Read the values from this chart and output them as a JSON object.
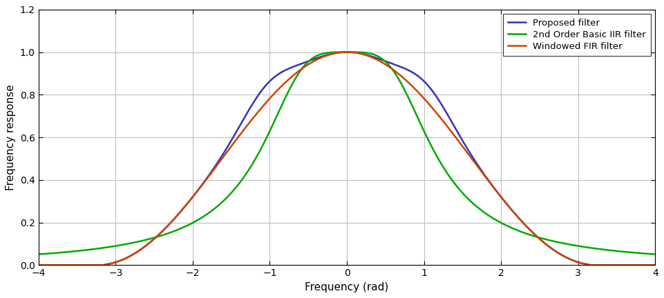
{
  "title": "",
  "xlabel": "Frequency (rad)",
  "ylabel": "Frequency response",
  "xlim": [
    -4,
    4
  ],
  "ylim": [
    0,
    1.2
  ],
  "xticks": [
    -4,
    -3,
    -2,
    -1,
    0,
    1,
    2,
    3,
    4
  ],
  "yticks": [
    0,
    0.2,
    0.4,
    0.6,
    0.8,
    1.0,
    1.2
  ],
  "legend": [
    "Proposed filter",
    "2nd Order Basic IIR filter",
    "Windowed FIR filter"
  ],
  "colors": [
    "#3333bb",
    "#00aa00",
    "#cc4400"
  ],
  "background": "#ffffff",
  "grid_color": "#c0c0c0",
  "linewidth": 1.8
}
